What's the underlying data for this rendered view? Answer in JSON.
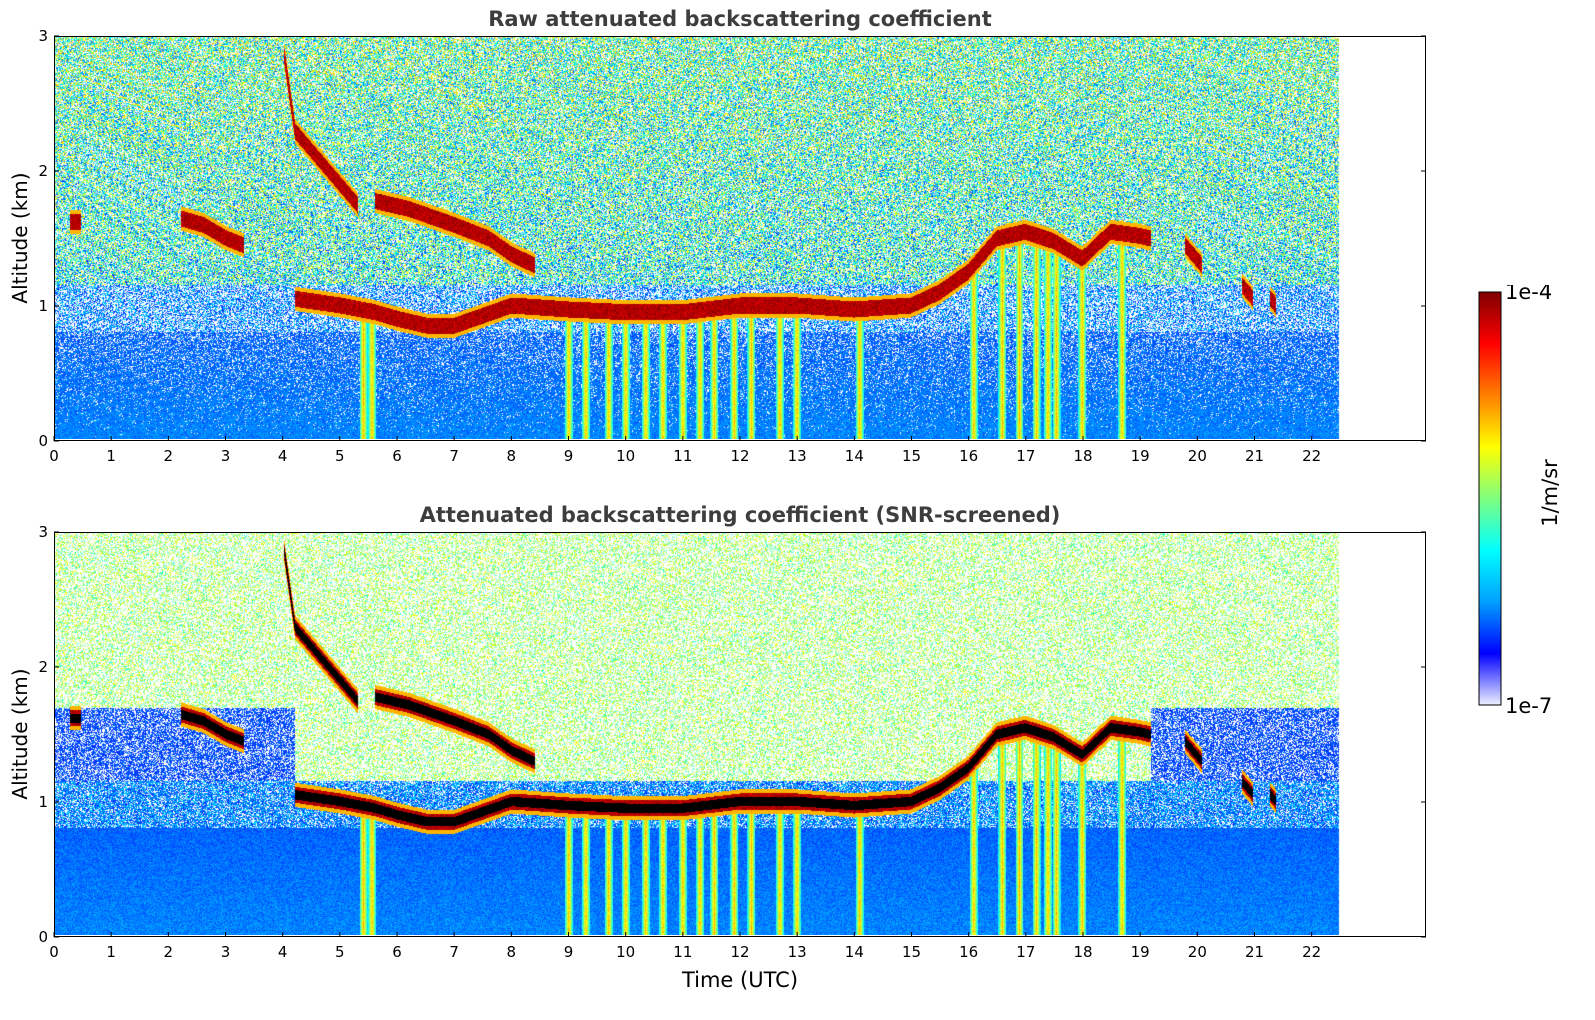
{
  "chart_data": [
    {
      "type": "heatmap",
      "title": "Raw attenuated backscattering coefficient",
      "xlabel": "",
      "ylabel": "Altitude (km)",
      "xlim": [
        0,
        24
      ],
      "ylim": [
        0,
        3
      ],
      "data_xlim": [
        0,
        22.5
      ],
      "x_ticks": [
        "0",
        "1",
        "2",
        "3",
        "4",
        "5",
        "6",
        "7",
        "8",
        "9",
        "10",
        "11",
        "12",
        "13",
        "14",
        "15",
        "16",
        "17",
        "18",
        "19",
        "20",
        "21",
        "22"
      ],
      "y_ticks": [
        "0",
        "1",
        "2",
        "3"
      ],
      "screened": false,
      "cloud_layers": [
        {
          "t": [
            0.25,
            0.45
          ],
          "alt": [
            1.62,
            1.62
          ]
        },
        {
          "t": [
            2.2,
            2.6,
            3.0,
            3.3
          ],
          "alt": [
            1.65,
            1.6,
            1.5,
            1.45
          ]
        },
        {
          "t": [
            4.0,
            4.2,
            4.6,
            5.0,
            5.3
          ],
          "alt": [
            2.9,
            2.3,
            2.1,
            1.9,
            1.75
          ]
        },
        {
          "t": [
            5.6,
            6.2,
            7.0,
            7.6,
            8.0,
            8.4
          ],
          "alt": [
            1.78,
            1.72,
            1.6,
            1.5,
            1.38,
            1.3
          ]
        },
        {
          "t": [
            4.2,
            5.0,
            5.6,
            6.0,
            6.5,
            7.0,
            8.0,
            9.0,
            10.0,
            11.0,
            12.0,
            13.0,
            14.0,
            15.0,
            15.5,
            16.0,
            16.5,
            17.0,
            17.5,
            18.0,
            18.5,
            19.0,
            19.2
          ],
          "alt": [
            1.05,
            1.0,
            0.95,
            0.9,
            0.85,
            0.85,
            1.0,
            0.97,
            0.95,
            0.95,
            1.0,
            1.0,
            0.97,
            1.0,
            1.1,
            1.25,
            1.5,
            1.55,
            1.48,
            1.35,
            1.55,
            1.52,
            1.5
          ]
        },
        {
          "t": [
            19.8,
            20.1
          ],
          "alt": [
            1.45,
            1.3
          ]
        },
        {
          "t": [
            20.8,
            21.0
          ],
          "alt": [
            1.15,
            1.05
          ]
        },
        {
          "t": [
            21.3,
            21.4
          ],
          "alt": [
            1.05,
            1.0
          ]
        }
      ],
      "precip_shafts": [
        5.4,
        5.55,
        9.0,
        9.3,
        9.7,
        10.0,
        10.35,
        10.65,
        11.0,
        11.3,
        11.55,
        11.9,
        12.2,
        12.7,
        13.0,
        14.1,
        16.1,
        16.6,
        16.9,
        17.2,
        17.4,
        17.55,
        18.0,
        18.7
      ]
    },
    {
      "type": "heatmap",
      "title": "Attenuated backscattering coefficient (SNR-screened)",
      "xlabel": "Time (UTC)",
      "ylabel": "Altitude (km)",
      "xlim": [
        0,
        24
      ],
      "ylim": [
        0,
        3
      ],
      "data_xlim": [
        0,
        22.5
      ],
      "x_ticks": [
        "0",
        "1",
        "2",
        "3",
        "4",
        "5",
        "6",
        "7",
        "8",
        "9",
        "10",
        "11",
        "12",
        "13",
        "14",
        "15",
        "16",
        "17",
        "18",
        "19",
        "20",
        "21",
        "22"
      ],
      "y_ticks": [
        "0",
        "1",
        "2",
        "3"
      ],
      "screened": true,
      "cloud_layers": "same as panel 1",
      "precip_shafts": "same as panel 1"
    }
  ],
  "colorbar": {
    "label": "1/m/sr",
    "max_label": "1e-4",
    "min_label": "1e-7",
    "colormap": "jet-with-white-bottom",
    "colors": [
      "#eef0ff",
      "#0000ff",
      "#00a0ff",
      "#00ffff",
      "#7fff7f",
      "#ffff00",
      "#ff7f00",
      "#ff0000",
      "#7f0000"
    ]
  }
}
